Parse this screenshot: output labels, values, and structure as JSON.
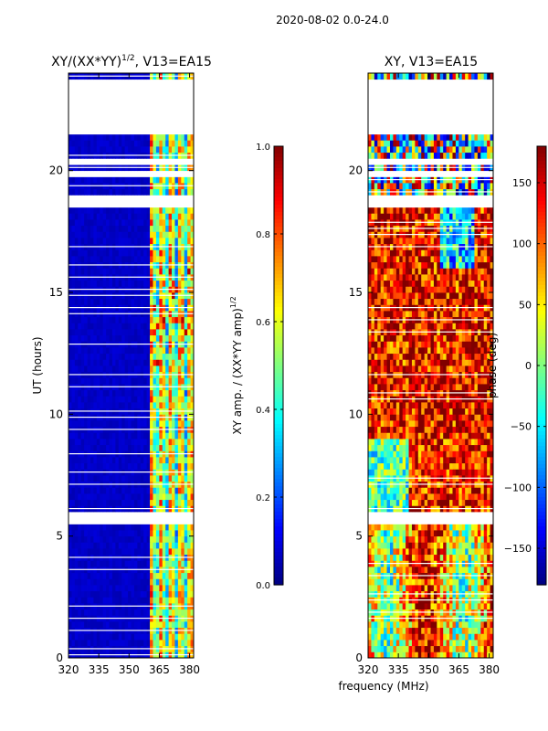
{
  "figure_title": "2020-08-02 0.0-24.0",
  "shared_xlabel": "frequency (MHz)",
  "chart_data": [
    {
      "type": "heatmap",
      "title_main": "XY/(XX*YY)",
      "title_sup": "1/2",
      "title_rest": ", V13=EA15",
      "xlabel": "",
      "ylabel": "UT (hours)",
      "x_ticks": [
        320,
        335,
        350,
        365,
        380
      ],
      "xlim": [
        320,
        382
      ],
      "y_ticks": [
        0,
        5,
        10,
        15,
        20
      ],
      "ylim": [
        0,
        24
      ],
      "colormap": "jet",
      "value_range": [
        0.0,
        1.0
      ],
      "colorbar_label_main": "XY amp. / (XX*YY amp)",
      "colorbar_label_sup": "1/2",
      "colorbar_ticks": [
        "0.0",
        "0.2",
        "0.4",
        "0.6",
        "0.8",
        "1.0"
      ],
      "colorbar_tick_values": [
        0.0,
        0.2,
        0.4,
        0.6,
        0.8,
        1.0
      ],
      "low_value_region_mhz": [
        320,
        360
      ],
      "active_band_mhz": [
        360,
        382
      ],
      "flagged_hours": [
        5.55,
        5.65,
        5.75,
        18.6,
        18.75,
        19.85,
        19.95,
        20.35,
        21.6,
        21.75,
        22.0,
        22.5,
        23.0,
        23.5
      ]
    },
    {
      "type": "heatmap",
      "title_main": "XY, V13=EA15",
      "ylabel": "",
      "x_ticks": [
        320,
        335,
        350,
        365,
        380
      ],
      "xlim": [
        320,
        382
      ],
      "y_ticks": [
        0,
        5,
        10,
        15,
        20
      ],
      "ylim": [
        0,
        24
      ],
      "colormap": "jet",
      "value_range": [
        -180,
        180
      ],
      "colorbar_label_main": "phase (deg)",
      "colorbar_ticks": [
        "150",
        "100",
        "50",
        "0",
        "−50",
        "−100",
        "−150"
      ],
      "colorbar_tick_values": [
        150,
        100,
        50,
        0,
        -50,
        -100,
        -150
      ],
      "flagged_hours": [
        5.55,
        5.65,
        5.75,
        18.6,
        18.75,
        19.85,
        19.95,
        20.35,
        21.6,
        21.75,
        22.0,
        22.5,
        23.0,
        23.5
      ]
    }
  ]
}
